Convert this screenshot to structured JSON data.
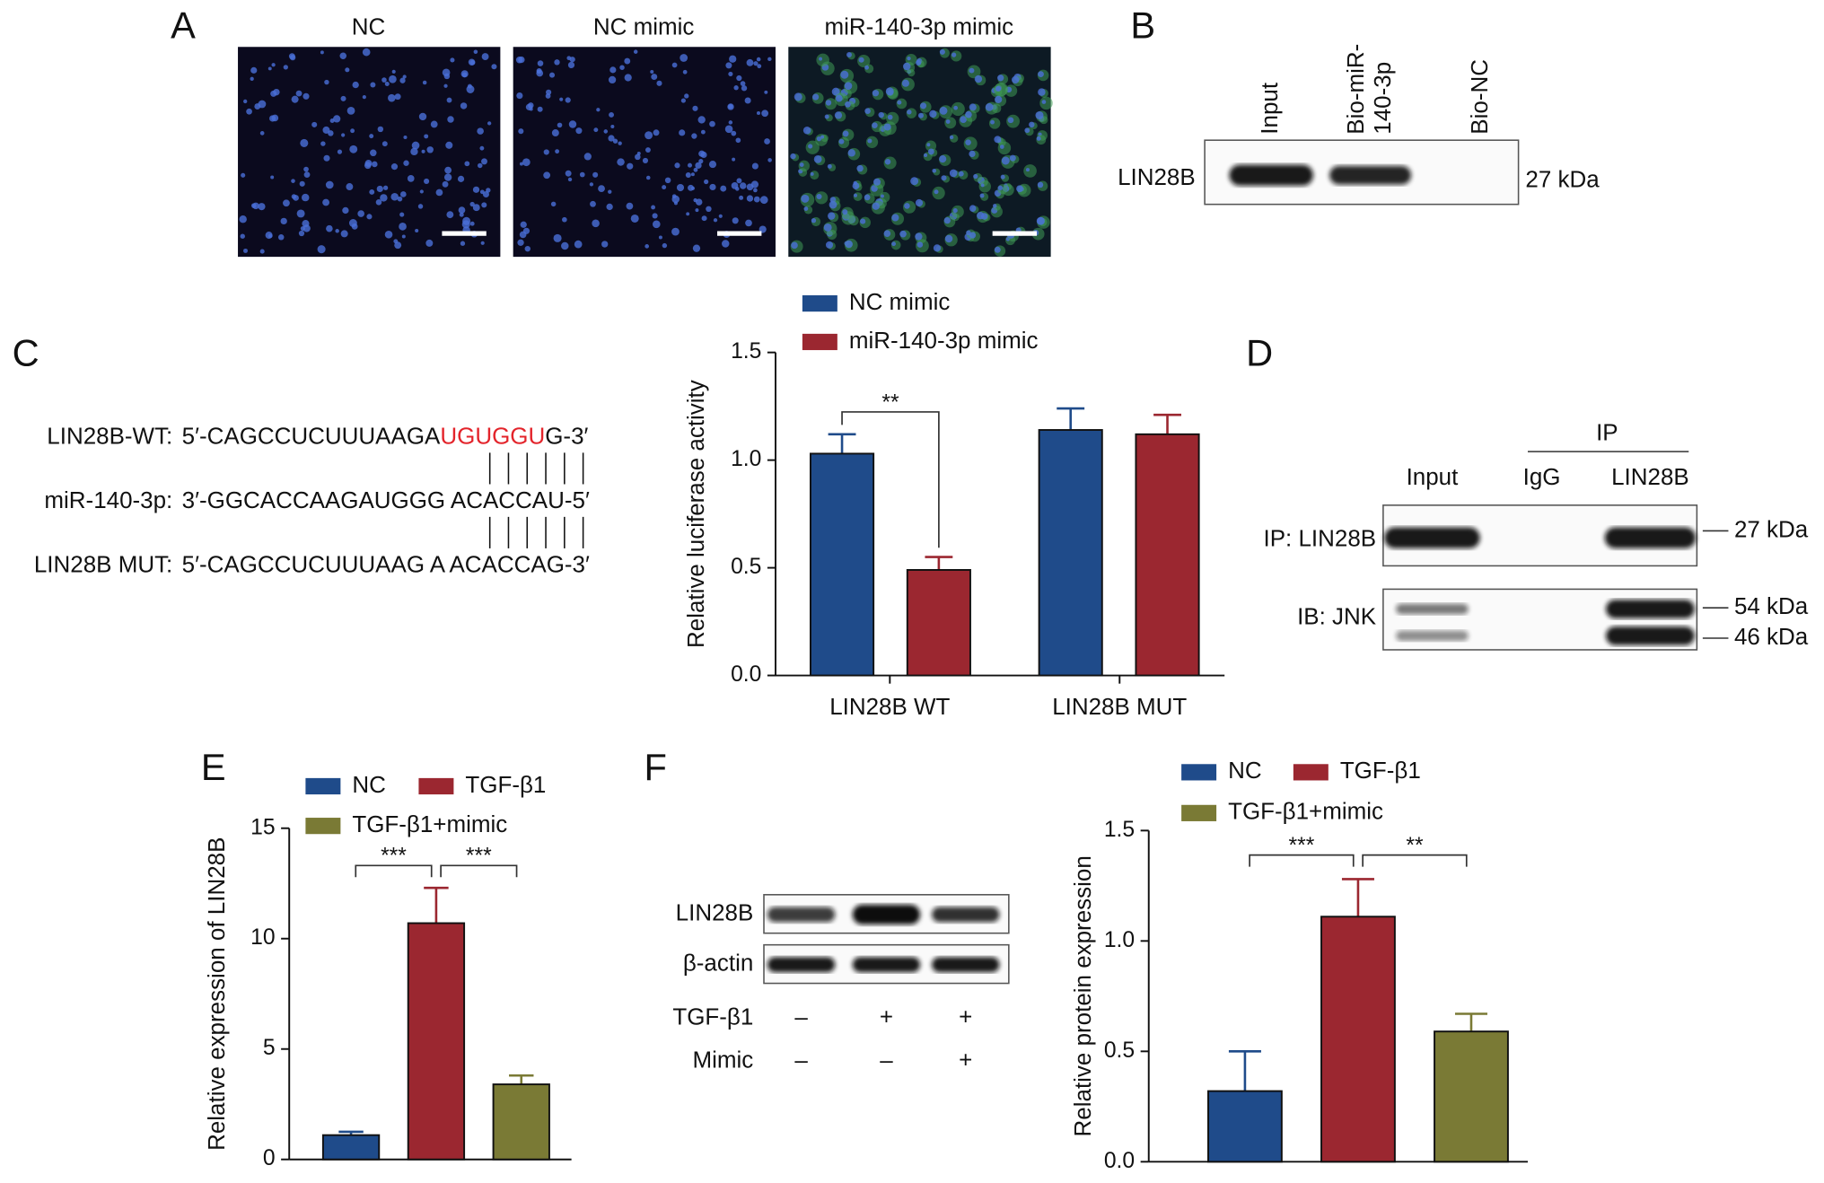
{
  "panel_a": {
    "label": "A",
    "titles": [
      "NC",
      "NC mimic",
      "miR-140-3p mimic"
    ]
  },
  "panel_b": {
    "label": "B",
    "lanes": [
      "Input",
      [
        "Bio-miR-",
        "140-3p"
      ],
      "Bio-NC"
    ],
    "row": "LIN28B",
    "size": "27 kDa"
  },
  "panel_c": {
    "label": "C",
    "rows": [
      {
        "name": "LIN28B-WT:",
        "parts": [
          "5′-CAGCCUCUUUAAGA",
          "UGUGGU",
          "G-3′"
        ]
      },
      {
        "name": "miR-140-3p:",
        "parts": [
          "3′-GGCACCAAGAUGGG ACACCAU-5′"
        ]
      },
      {
        "name": "LIN28B MUT:",
        "parts": [
          "5′-CAGCCUCUUUAAG A ACACCAG-3′"
        ]
      }
    ]
  },
  "panel_d": {
    "label": "D",
    "header": "IP",
    "lanes": [
      "Input",
      "IgG",
      "LIN28B"
    ],
    "rows": [
      "IP: LIN28B",
      "IB: JNK"
    ],
    "sizes": [
      "27 kDa",
      "54 kDa",
      "46 kDa"
    ]
  },
  "panel_e": {
    "label": "E"
  },
  "panel_f": {
    "label": "F",
    "blot_rows": [
      "LIN28B",
      "β-actin"
    ],
    "conditions": [
      {
        "name": "TGF-β1",
        "signs": [
          "–",
          "+",
          "+"
        ]
      },
      {
        "name": "Mimic",
        "signs": [
          "–",
          "–",
          "+"
        ]
      }
    ]
  },
  "chart_data": [
    {
      "type": "bar",
      "ylabel": "Relative luciferase activity",
      "categories": [
        "LIN28B WT",
        "LIN28B MUT"
      ],
      "series": [
        {
          "name": "NC mimic",
          "color": "#1f4b8a",
          "values": [
            1.03,
            1.14
          ],
          "errors": [
            0.09,
            0.1
          ]
        },
        {
          "name": "miR-140-3p mimic",
          "color": "#9b2730",
          "values": [
            0.49,
            1.12
          ],
          "errors": [
            0.06,
            0.09
          ]
        }
      ],
      "ylim": [
        0,
        1.5
      ],
      "yticks": [
        {
          "value": 0,
          "label": "0.0"
        },
        {
          "value": 0.5,
          "label": "0.5"
        },
        {
          "value": 1,
          "label": "1.0"
        },
        {
          "value": 1.5,
          "label": "1.5"
        }
      ],
      "annotations": [
        "**"
      ]
    },
    {
      "type": "bar",
      "ylabel": "Relative expression of LIN28B",
      "series": [
        {
          "name": "NC",
          "color": "#1f4b8a",
          "values": [
            1.1
          ],
          "errors": [
            0.15
          ]
        },
        {
          "name": "TGF-β1",
          "color": "#9b2730",
          "values": [
            10.7
          ],
          "errors": [
            1.6
          ]
        },
        {
          "name": "TGF-β1+mimic",
          "color": "#7a7a35",
          "values": [
            3.4
          ],
          "errors": [
            0.4
          ]
        }
      ],
      "ylim": [
        0,
        15
      ],
      "yticks": [
        0,
        5,
        10,
        15
      ],
      "annotations": [
        "***",
        "***"
      ]
    },
    {
      "type": "bar",
      "ylabel": "Relative protein expression",
      "series": [
        {
          "name": "NC",
          "color": "#1f4b8a",
          "values": [
            0.32
          ],
          "errors": [
            0.18
          ]
        },
        {
          "name": "TGF-β1",
          "color": "#9b2730",
          "values": [
            1.11
          ],
          "errors": [
            0.17
          ]
        },
        {
          "name": "TGF-β1+mimic",
          "color": "#7a7a35",
          "values": [
            0.59
          ],
          "errors": [
            0.08
          ]
        }
      ],
      "ylim": [
        0,
        1.5
      ],
      "yticks": [
        {
          "value": 0,
          "label": "0.0"
        },
        {
          "value": 0.5,
          "label": "0.5"
        },
        {
          "value": 1,
          "label": "1.0"
        },
        {
          "value": 1.5,
          "label": "1.5"
        }
      ],
      "annotations": [
        "***",
        "**"
      ]
    }
  ]
}
